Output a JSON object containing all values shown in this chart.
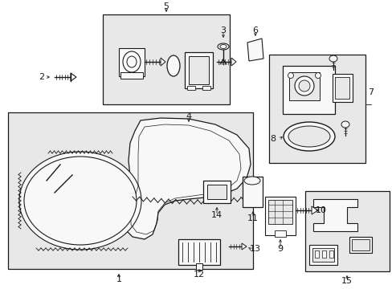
{
  "bg_color": "#ffffff",
  "fig_width": 4.89,
  "fig_height": 3.6,
  "dpi": 100,
  "line_color": "#1a1a1a",
  "gray_fill": "#e8e8e8",
  "white_fill": "#f8f8f8"
}
